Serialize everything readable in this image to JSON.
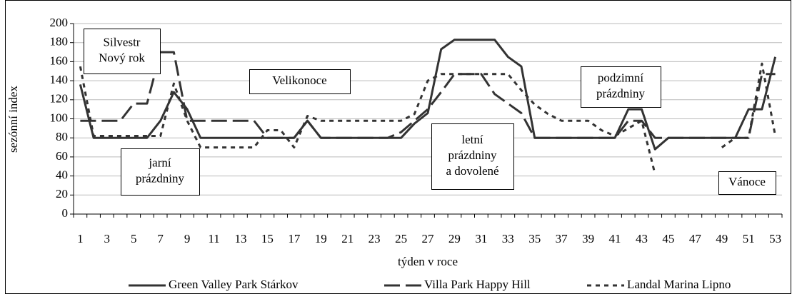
{
  "chart_data": {
    "type": "line",
    "ylabel": "sezónní index",
    "xlabel": "týden v roce",
    "categories": [
      "1",
      null,
      "3",
      null,
      "5",
      null,
      "7",
      null,
      "9",
      null,
      "11",
      null,
      "13",
      null,
      "15",
      null,
      "17",
      null,
      "19",
      null,
      "21",
      null,
      "23",
      null,
      "25",
      null,
      "27",
      null,
      "29",
      null,
      "31",
      null,
      "33",
      null,
      "35",
      null,
      "37",
      null,
      "39",
      null,
      "41",
      null,
      "43",
      null,
      "45",
      null,
      "47",
      null,
      "49",
      null,
      "51",
      null,
      "53"
    ],
    "ylim": [
      0,
      200
    ],
    "yticks": [
      0,
      20,
      40,
      60,
      80,
      100,
      120,
      140,
      160,
      180,
      200
    ],
    "grid": true,
    "legend": "bottom",
    "series": [
      {
        "name": "Green Valley Park Stárkov",
        "color": "#333333",
        "dash": "solid",
        "values": [
          136,
          80,
          80,
          80,
          80,
          80,
          98,
          128,
          110,
          80,
          80,
          80,
          80,
          80,
          80,
          80,
          80,
          98,
          80,
          80,
          80,
          80,
          80,
          80,
          80,
          95,
          106,
          173,
          183,
          183,
          183,
          183,
          165,
          155,
          80,
          80,
          80,
          80,
          80,
          80,
          80,
          110,
          110,
          68,
          80,
          80,
          80,
          80,
          80,
          80,
          110,
          110,
          165
        ]
      },
      {
        "name": "Villa Park Happy Hill",
        "color": "#333333",
        "dash": "long",
        "values": [
          98,
          98,
          98,
          98,
          116,
          116,
          170,
          170,
          98,
          98,
          98,
          98,
          98,
          98,
          80,
          80,
          80,
          98,
          80,
          80,
          80,
          80,
          80,
          80,
          86,
          98,
          110,
          128,
          147,
          147,
          147,
          126,
          116,
          106,
          80,
          80,
          80,
          80,
          80,
          80,
          80,
          98,
          98,
          80,
          80,
          80,
          80,
          80,
          80,
          80,
          80,
          147,
          147
        ]
      },
      {
        "name": "Landal Marina Lipno",
        "color": "#333333",
        "dash": "short",
        "values": [
          155,
          82,
          82,
          82,
          82,
          82,
          82,
          137,
          98,
          70,
          70,
          70,
          70,
          70,
          88,
          88,
          70,
          103,
          98,
          98,
          98,
          98,
          98,
          98,
          98,
          105,
          140,
          147,
          147,
          147,
          147,
          147,
          147,
          130,
          115,
          105,
          98,
          98,
          98,
          88,
          82,
          90,
          98,
          42,
          null,
          null,
          null,
          null,
          70,
          80,
          80,
          158,
          82
        ]
      }
    ],
    "annotations": [
      {
        "lines": [
          "Silvestr",
          "Nový rok"
        ]
      },
      {
        "lines": [
          "jarní",
          "prázdniny"
        ]
      },
      {
        "lines": [
          "Velikonoce"
        ]
      },
      {
        "lines": [
          "letní",
          "prázdniny",
          "a dovolené"
        ]
      },
      {
        "lines": [
          "podzimní",
          "prázdniny"
        ]
      },
      {
        "lines": [
          "Vánoce"
        ]
      }
    ]
  }
}
